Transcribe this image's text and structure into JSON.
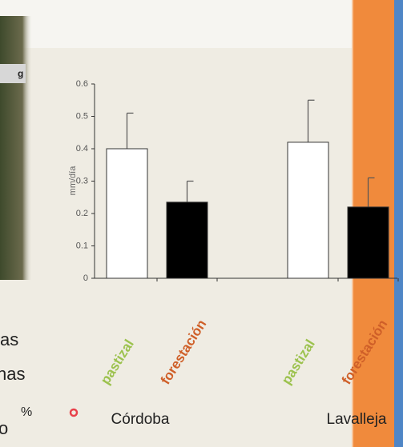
{
  "slide_fragments": {
    "box": "g",
    "lines": [
      "as",
      "nas",
      "o"
    ],
    "percent": "%"
  },
  "chart_data": {
    "type": "bar",
    "ylabel": "mm/día",
    "categories": [
      "Córdoba",
      "Lavalleja"
    ],
    "series": [
      {
        "name": "pastizal",
        "color": "#ffffff",
        "label_color": "#9cc24e",
        "values": [
          0.4,
          0.42
        ],
        "errors": [
          0.11,
          0.13
        ]
      },
      {
        "name": "forestación",
        "color": "#000000",
        "label_color": "#cf5f28",
        "values": [
          0.235,
          0.22
        ],
        "errors": [
          0.065,
          0.09
        ]
      }
    ],
    "ylim": [
      0,
      0.6
    ],
    "yticks": [
      0,
      0.1,
      0.2,
      0.3,
      0.4,
      0.5,
      0.6
    ],
    "grid": false
  }
}
